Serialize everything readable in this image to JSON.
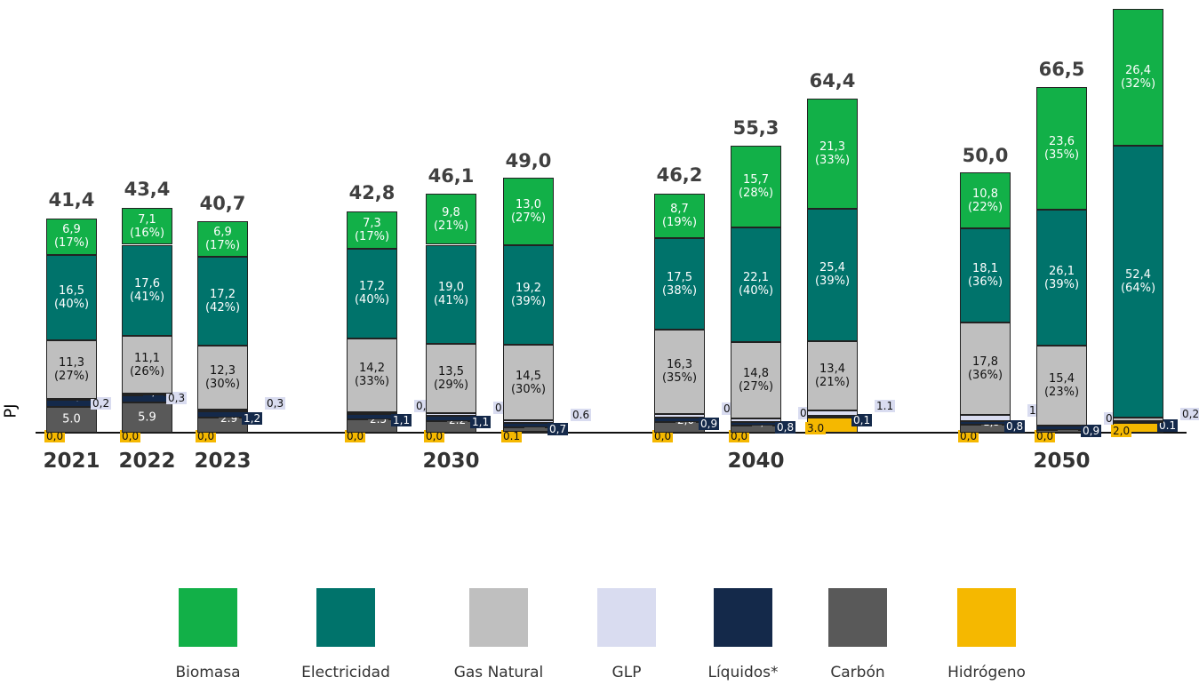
{
  "chart_data": {
    "type": "stacked-bar",
    "y_label": "PJ",
    "ylim": [
      0,
      82.5
    ],
    "categories": [
      "2021",
      "2022",
      "2023",
      null,
      "2030",
      null,
      null,
      "2040",
      null,
      null,
      "2050",
      null
    ],
    "totals": [
      41.4,
      43.4,
      40.7,
      42.8,
      46.1,
      49.0,
      46.2,
      55.3,
      64.4,
      50.0,
      66.5,
      null
    ],
    "total_labels": [
      "41,4",
      "43,4",
      "40,7",
      "42,8",
      "46,1",
      "49,0",
      "46,2",
      "55,3",
      "64,4",
      "50,0",
      "66,5",
      null
    ],
    "series": [
      {
        "name": "Biomasa",
        "color": "#12b048",
        "values": [
          6.9,
          7.1,
          6.9,
          7.3,
          9.8,
          13.0,
          8.7,
          15.7,
          21.3,
          10.8,
          23.6,
          26.4
        ],
        "value_labels": [
          "6,9\n(17%)",
          "7,1\n(16%)",
          "6,9\n(17%)",
          "7,3\n(17%)",
          "9,8\n(21%)",
          "13,0\n(27%)",
          "8,7\n(19%)",
          "15,7\n(28%)",
          "21,3\n(33%)",
          "10,8\n(22%)",
          "23,6\n(35%)",
          "26,4\n(32%)"
        ]
      },
      {
        "name": "Electricidad",
        "color": "#00736b",
        "values": [
          16.5,
          17.6,
          17.2,
          17.2,
          19.0,
          19.2,
          17.5,
          22.1,
          25.4,
          18.1,
          26.1,
          52.4
        ],
        "value_labels": [
          "16,5\n(40%)",
          "17,6\n(41%)",
          "17,2\n(42%)",
          "17,2\n(40%)",
          "19,0\n(41%)",
          "19,2\n(39%)",
          "17,5\n(38%)",
          "22,1\n(40%)",
          "25,4\n(39%)",
          "18,1\n(36%)",
          "26,1\n(39%)",
          "52,4\n(64%)"
        ]
      },
      {
        "name": "Gas Natural",
        "color": "#bfbfbf",
        "values": [
          11.3,
          11.1,
          12.3,
          14.2,
          13.5,
          14.5,
          16.3,
          14.8,
          13.4,
          17.8,
          15.4,
          0.6
        ],
        "value_labels": [
          "11,3\n(27%)",
          "11,1\n(26%)",
          "12,3\n(30%)",
          "14,2\n(33%)",
          "13,5\n(29%)",
          "14,5\n(30%)",
          "16,3\n(35%)",
          "14,8\n(27%)",
          "13,4\n(21%)",
          "17,8\n(36%)",
          "15,4\n(23%)",
          "0,6"
        ]
      },
      {
        "name": "GLP",
        "color": "#d9dcf0",
        "values": [
          0.2,
          0.3,
          0.3,
          0.4,
          0.4,
          0.6,
          0.7,
          0.6,
          1.1,
          1.1,
          0.0,
          0.2
        ],
        "value_labels": [
          "0,2",
          "0,3",
          "0,3",
          "0,4",
          "0.4",
          "0.6",
          "0.7",
          "0.6",
          "1.1",
          "1.1",
          "0,0",
          "0,2"
        ]
      },
      {
        "name": "Líquidos*",
        "color": "#14294a",
        "values": [
          1.3,
          1.3,
          1.2,
          1.1,
          1.1,
          0.7,
          0.9,
          0.8,
          0.1,
          0.8,
          0.9,
          0.1
        ],
        "value_labels": [
          "1,3",
          "1,3",
          "1,2",
          "1,1",
          "1,1",
          "0,7",
          "0,9",
          "0,8",
          "0,1",
          "0,8",
          "0,9",
          "0.1"
        ]
      },
      {
        "name": "Carbón",
        "color": "#595959",
        "values": [
          5.0,
          5.9,
          2.9,
          2.5,
          2.2,
          1.0,
          2.0,
          1.3,
          0.1,
          1.5,
          0.5,
          0.0
        ],
        "value_labels": [
          "5.0",
          "5.9",
          "2.9",
          "2.5",
          "2.2",
          "1,0",
          "2,0",
          "1,3",
          "0.1",
          "1,5",
          "0,5",
          "0,0"
        ]
      },
      {
        "name": "Hidrógeno",
        "color": "#f5b800",
        "values": [
          0.0,
          0.0,
          0.0,
          0.0,
          0.0,
          0.1,
          0.0,
          0.0,
          3.0,
          0.0,
          0.0,
          2.0
        ],
        "value_labels": [
          "0,0",
          "0,0",
          "0,0",
          "0,0",
          "0,0",
          "0.1",
          "0,0",
          "0,0",
          "3.0",
          "0,0",
          "0,0",
          "2,0"
        ]
      }
    ]
  }
}
